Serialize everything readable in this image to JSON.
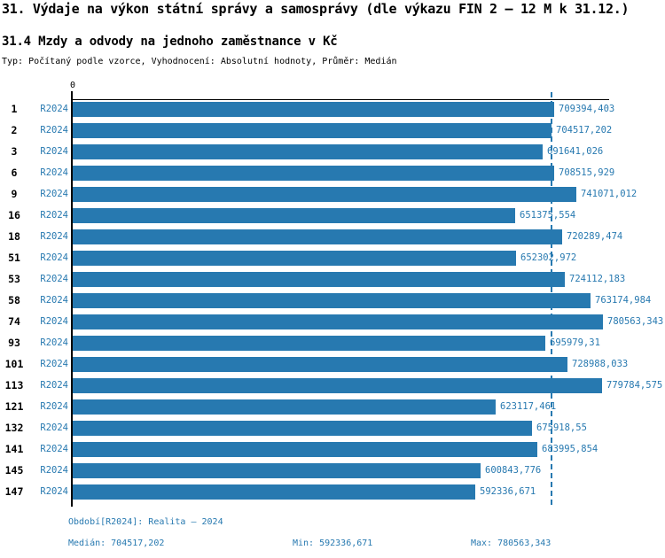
{
  "title": "31. Výdaje na výkon státní správy a samosprávy (dle výkazu FIN 2 – 12 M k 31.12.)",
  "subtitle": "31.4 Mzdy a odvody na jednoho zaměstnance v Kč",
  "meta": "Typ: Počítaný podle vzorce, Vyhodnocení: Absolutní hodnoty, Průměr: Medián",
  "colors": {
    "bar": "#2779b0",
    "blue_text": "#2779b0",
    "axis": "#000000"
  },
  "chart_data": {
    "type": "bar",
    "orientation": "horizontal",
    "axis_zero_label": "0",
    "series_name": "R2024",
    "categories": [
      "1",
      "2",
      "3",
      "6",
      "9",
      "16",
      "18",
      "51",
      "53",
      "58",
      "74",
      "93",
      "101",
      "113",
      "121",
      "132",
      "141",
      "145",
      "147"
    ],
    "values": [
      709394.403,
      704517.202,
      691641.026,
      708515.929,
      741071.012,
      651375.554,
      720289.474,
      652302.972,
      724112.183,
      763174.984,
      780563.343,
      695979.31,
      728988.033,
      779784.575,
      623117.461,
      675918.55,
      683995.854,
      600843.776,
      592336.671
    ],
    "value_labels": [
      "709394,403",
      "704517,202",
      "691641,026",
      "708515,929",
      "741071,012",
      "651375,554",
      "720289,474",
      "652302,972",
      "724112,183",
      "763174,984",
      "780563,343",
      "695979,31",
      "728988,033",
      "779784,575",
      "623117,461",
      "675918,55",
      "683995,854",
      "600843,776",
      "592336,671"
    ],
    "xlim": [
      0,
      790000
    ],
    "median_value": 704517.202,
    "median_line": true,
    "grid": false,
    "legend_position": "none"
  },
  "footer": {
    "period": "Období[R2024]: Realita – 2024",
    "median": "Medián: 704517,202",
    "min": "Min: 592336,671",
    "max": "Max: 780563,343"
  }
}
